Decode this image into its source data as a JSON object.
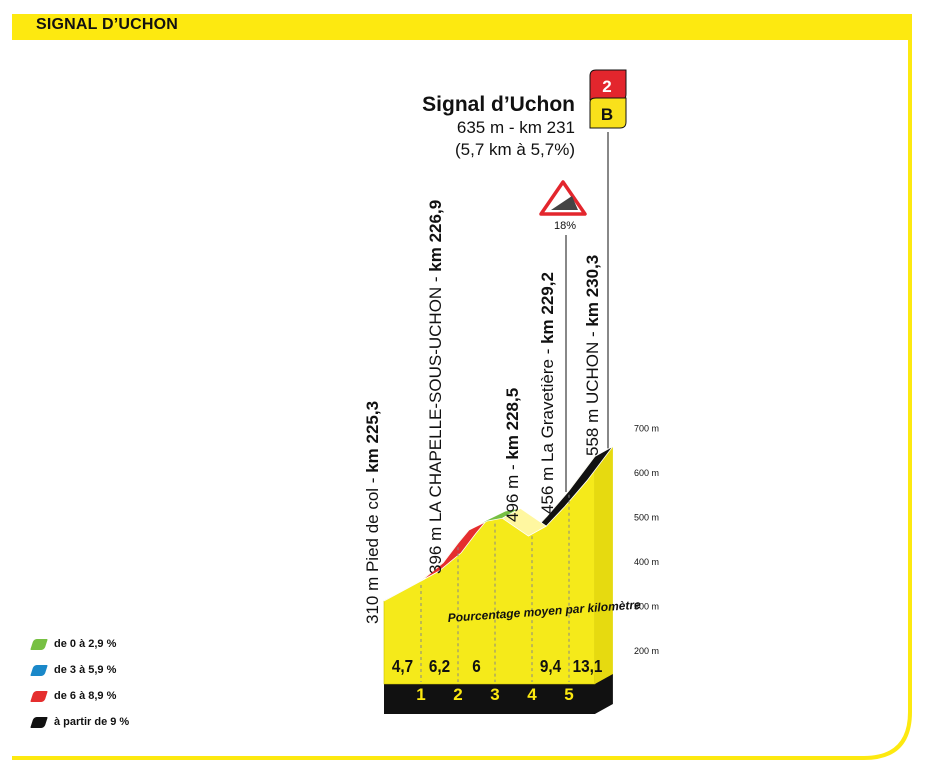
{
  "header": {
    "title": "SIGNAL D’UCHON"
  },
  "summit": {
    "name": "Signal d’Uchon",
    "altitude_km": "635 m - km 231",
    "climb_stats": "(5,7 km à 5,7%)",
    "category_number": "2",
    "category_letter": "B"
  },
  "warning_sign": {
    "icon": "steep-gradient-warning-icon",
    "percent": "18%"
  },
  "colors": {
    "frame": "#fde910",
    "profile_fill": "#f5ea1a",
    "base": "#111111",
    "cat_red": "#e3262d",
    "cat_yellow": "#f9e11b",
    "green": "#77c043",
    "blue": "#1a88c9",
    "red": "#e52e2e",
    "black": "#111111"
  },
  "legend": [
    {
      "label": "de 0 à 2,9 %",
      "color": "#77c043"
    },
    {
      "label": "de 3 à 5,9 %",
      "color": "#1a88c9"
    },
    {
      "label": "de 6 à 8,9 %",
      "color": "#e52e2e"
    },
    {
      "label": "à partir de 9 %",
      "color": "#111111"
    }
  ],
  "chart_data": {
    "type": "area",
    "title": "",
    "ylabel": "",
    "xlabel": "",
    "ylim": [
      200,
      700
    ],
    "y_ticks": [
      "700 m",
      "600 m",
      "500 m",
      "400 m",
      "300 m",
      "200 m"
    ],
    "y_tick_values": [
      700,
      600,
      500,
      400,
      300,
      200
    ],
    "band_label": "Pourcentage moyen par kilomètre",
    "km_markers": [
      "1",
      "2",
      "3",
      "4",
      "5"
    ],
    "km_gradients": [
      "4,7",
      "6,2",
      "6",
      "",
      "9,4",
      "13,1"
    ],
    "profile_points": [
      {
        "km": 0.0,
        "alt": 310
      },
      {
        "km": 1.0,
        "alt": 355
      },
      {
        "km": 1.6,
        "alt": 396
      },
      {
        "km": 2.0,
        "alt": 440
      },
      {
        "km": 2.3,
        "alt": 470
      },
      {
        "km": 2.8,
        "alt": 490
      },
      {
        "km": 3.2,
        "alt": 496
      },
      {
        "km": 3.9,
        "alt": 456
      },
      {
        "km": 4.4,
        "alt": 500
      },
      {
        "km": 5.0,
        "alt": 558
      },
      {
        "km": 5.7,
        "alt": 635
      }
    ],
    "gradient_segments": [
      {
        "from_km": 0.0,
        "to_km": 1.0,
        "class": "blue"
      },
      {
        "from_km": 1.0,
        "to_km": 2.3,
        "class": "red"
      },
      {
        "from_km": 2.3,
        "to_km": 3.2,
        "class": "green"
      },
      {
        "from_km": 3.9,
        "to_km": 5.7,
        "class": "black"
      }
    ],
    "annotations": [
      {
        "label_plain": "310 m Pied de col - ",
        "label_bold": "km 225,3",
        "km": 0.0,
        "alt": 310
      },
      {
        "label_plain": "396 m LA CHAPELLE-SOUS-UCHON - ",
        "label_bold": "km 226,9",
        "km": 1.6,
        "alt": 396
      },
      {
        "label_plain": "496 m - ",
        "label_bold": "km 228,5",
        "km": 3.2,
        "alt": 496
      },
      {
        "label_plain": "456 m La Gravetière - ",
        "label_bold": "km 229,2",
        "km": 3.9,
        "alt": 456
      },
      {
        "label_plain": "558 m UCHON - ",
        "label_bold": "km 230,3",
        "km": 5.0,
        "alt": 558
      }
    ]
  }
}
